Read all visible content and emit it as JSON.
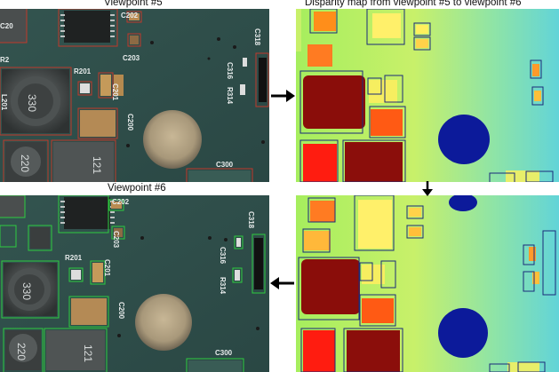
{
  "captions": {
    "viewpoint5": "Viewpoint #5",
    "disparity": "Disparity map from viewpoint #5 to viewpoint #6",
    "viewpoint6": "Viewpoint #6"
  },
  "pcb_labels": {
    "top": {
      "c202": "C202",
      "c203": "C203",
      "c318": "C318",
      "r201": "R201",
      "c201": "C201",
      "c316": "C316",
      "r314": "R314",
      "c200": "C200",
      "c300": "C300",
      "l201": "L201",
      "c20": "C20",
      "r2": "R2",
      "ind330": "330",
      "ind220": "220",
      "ind121": "121"
    },
    "bottom": {
      "c202": "C202",
      "c203": "C203",
      "c318": "C318",
      "r201": "R201",
      "c201": "C201",
      "c316": "C316",
      "r314": "R314",
      "c200": "C200",
      "c300": "C300",
      "ind330": "330",
      "ind220": "220",
      "ind121": "121"
    }
  },
  "colors": {
    "pcb": "#2f4f4a",
    "box_top": "#c0392b",
    "box_bottom": "#2ecc40",
    "disp_box": "#1a2a7a"
  }
}
